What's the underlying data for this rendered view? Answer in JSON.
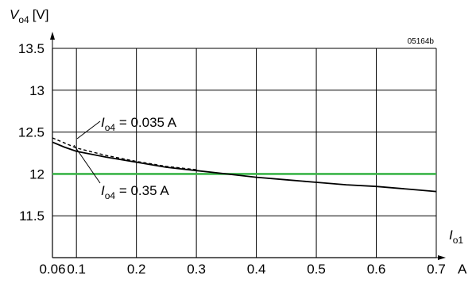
{
  "chart_data": {
    "type": "line",
    "ylabel": {
      "var": "V",
      "sub": "o4",
      "unit": "[V]"
    },
    "xlabel": {
      "var": "I",
      "sub": "o1",
      "unit": "A"
    },
    "reference_code": "05164b",
    "xlim": [
      0.06,
      0.7
    ],
    "ylim": [
      11.0,
      13.5
    ],
    "x_ticks": [
      0.06,
      0.1,
      0.2,
      0.3,
      0.4,
      0.5,
      0.6,
      0.7
    ],
    "x_tick_labels": [
      "0.06",
      "0.1",
      "0.2",
      "0.3",
      "0.4",
      "0.5",
      "0.6",
      "0.7"
    ],
    "y_ticks": [
      11.5,
      12,
      12.5,
      13,
      13.5
    ],
    "y_tick_labels": [
      "11.5",
      "12",
      "12.5",
      "13",
      "13.5"
    ],
    "grid": true,
    "reference_line": {
      "y": 12.0,
      "color": "#3cb54a"
    },
    "series": [
      {
        "style": "solid",
        "color": "#000000",
        "x": [
          0.06,
          0.08,
          0.1,
          0.15,
          0.2,
          0.25,
          0.3,
          0.35,
          0.4,
          0.45,
          0.5,
          0.55,
          0.6,
          0.65,
          0.7
        ],
        "y": [
          12.38,
          12.32,
          12.27,
          12.2,
          12.14,
          12.08,
          12.04,
          12.0,
          11.96,
          11.93,
          11.9,
          11.87,
          11.85,
          11.82,
          11.79
        ]
      },
      {
        "style": "dashed",
        "color": "#000000",
        "x": [
          0.06,
          0.08,
          0.1,
          0.15,
          0.2,
          0.25,
          0.3
        ],
        "y": [
          12.43,
          12.37,
          12.31,
          12.22,
          12.15,
          12.09,
          12.05
        ]
      }
    ],
    "annotations": [
      {
        "var": "I",
        "sub": "o4",
        "text": " = 0.035 A",
        "target_series": 1
      },
      {
        "var": "I",
        "sub": "o4",
        "text": " = 0.35 A",
        "target_series": 0
      }
    ]
  }
}
